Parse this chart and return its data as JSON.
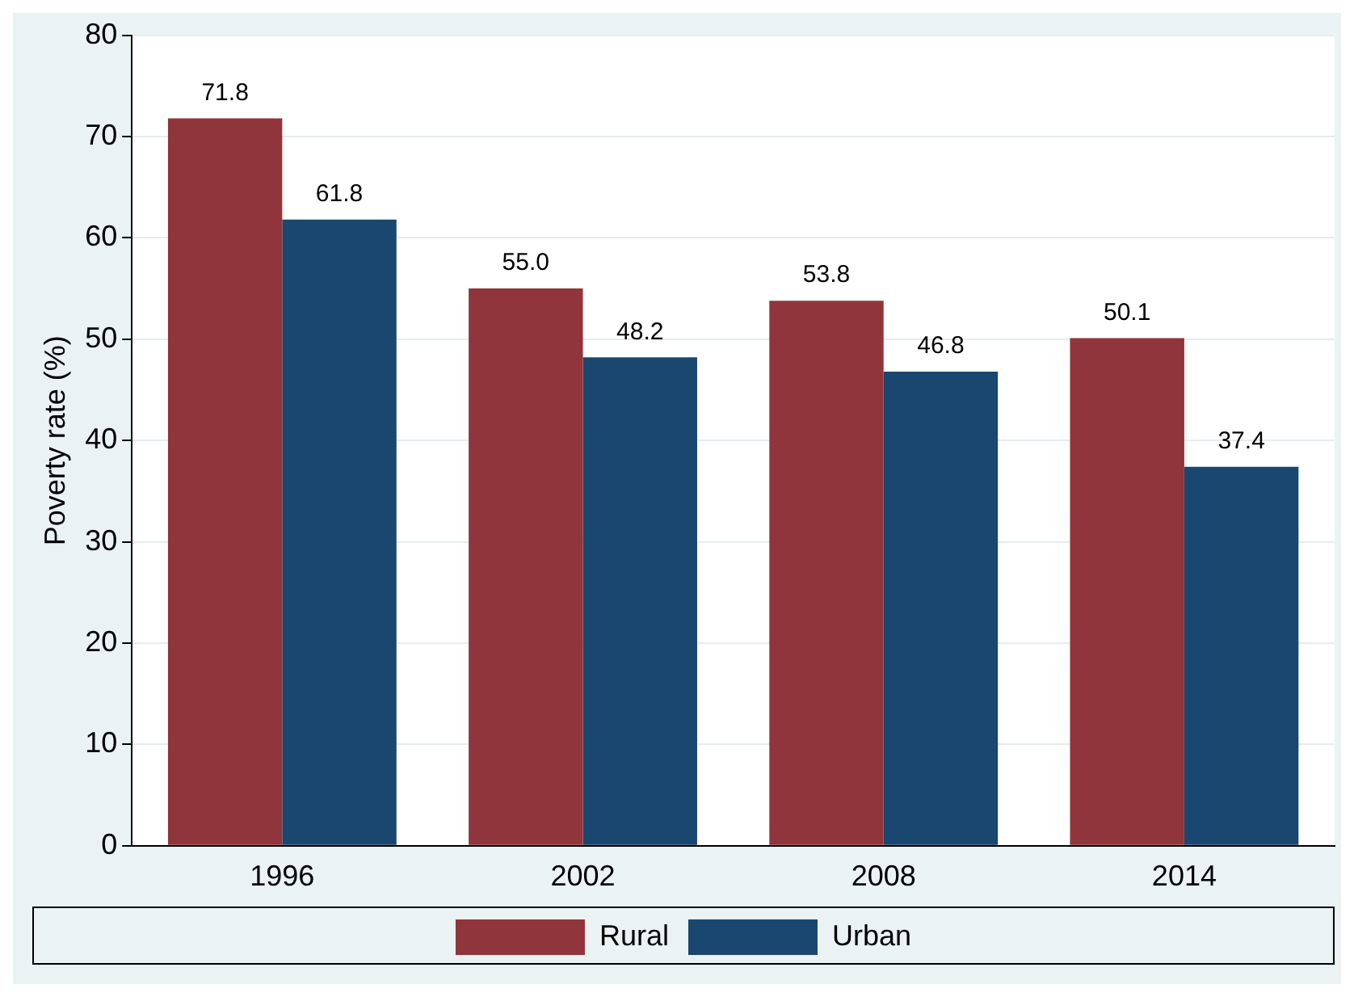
{
  "chart_data": {
    "type": "bar",
    "ylabel": "Poverty rate (%)",
    "categories": [
      "1996",
      "2002",
      "2008",
      "2014"
    ],
    "series": [
      {
        "name": "Rural",
        "color": "#90353b",
        "values": [
          71.8,
          55.0,
          53.8,
          50.1
        ],
        "value_labels": [
          "71.8",
          "55.0",
          "53.8",
          "50.1"
        ]
      },
      {
        "name": "Urban",
        "color": "#1a476f",
        "values": [
          61.8,
          48.2,
          46.8,
          37.4
        ],
        "value_labels": [
          "61.8",
          "48.2",
          "46.8",
          "37.4"
        ]
      }
    ],
    "ylim": [
      0,
      80
    ],
    "yticks": [
      0,
      10,
      20,
      30,
      40,
      50,
      60,
      70,
      80
    ],
    "grid": "y",
    "legend": "bottom"
  }
}
